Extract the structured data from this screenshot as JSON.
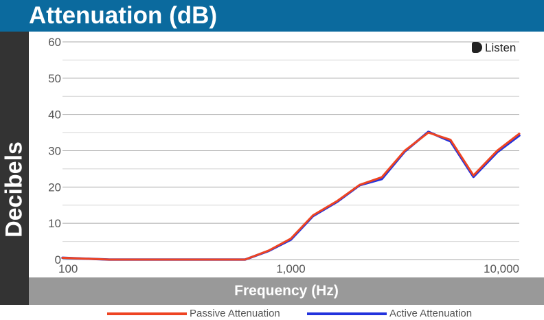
{
  "header": {
    "title": "Attenuation (dB)"
  },
  "brand": {
    "logo_text": "Listen"
  },
  "chart_data": {
    "type": "line",
    "title": "Attenuation (dB)",
    "xlabel": "Frequency (Hz)",
    "ylabel": "Decibels",
    "x_scale": "log",
    "xlim": [
      100,
      10000
    ],
    "ylim": [
      0,
      60
    ],
    "grid": true,
    "legend_position": "bottom",
    "x_tick_labels": [
      {
        "value": 100,
        "label": "100"
      },
      {
        "value": 1000,
        "label": "1,000"
      },
      {
        "value": 10000,
        "label": "10,000"
      }
    ],
    "y_tick_labels": [
      {
        "value": 0,
        "label": "0"
      },
      {
        "value": 10,
        "label": "10"
      },
      {
        "value": 20,
        "label": "20"
      },
      {
        "value": 30,
        "label": "30"
      },
      {
        "value": 40,
        "label": "40"
      },
      {
        "value": 50,
        "label": "50"
      },
      {
        "value": 60,
        "label": "60"
      }
    ],
    "series": [
      {
        "name": "Passive Attenuation",
        "color": "#ee4422",
        "x": [
          100,
          160,
          630,
          800,
          1000,
          1250,
          1600,
          2000,
          2500,
          3150,
          4000,
          5000,
          6300,
          8000,
          10000
        ],
        "y": [
          0.5,
          0,
          0,
          2.5,
          5.8,
          12.2,
          16.2,
          20.6,
          22.7,
          30.0,
          35.0,
          33.0,
          23.2,
          30.0,
          34.7
        ]
      },
      {
        "name": "Active Attenuation",
        "color": "#2233dd",
        "x": [
          100,
          160,
          630,
          800,
          1000,
          1250,
          1600,
          2000,
          2500,
          3150,
          4000,
          5000,
          6300,
          8000,
          10000
        ],
        "y": [
          0.5,
          0,
          0,
          2.4,
          5.5,
          12.0,
          16.0,
          20.5,
          22.2,
          29.8,
          35.2,
          32.6,
          22.8,
          29.6,
          34.2
        ]
      }
    ]
  }
}
